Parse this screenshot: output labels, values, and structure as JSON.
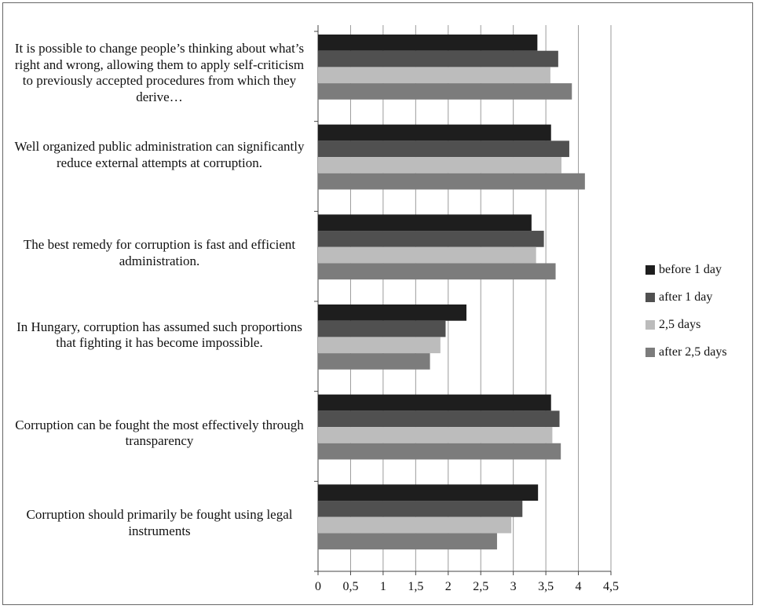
{
  "chart_data": {
    "type": "bar",
    "orientation": "horizontal",
    "categories": [
      "It is possible to change people’s thinking about what’s right and wrong, allowing them to apply self-criticism to previously accepted procedures from which they derive…",
      "Well organized public administration can significantly reduce external attempts at corruption.",
      "The best remedy for corruption is fast and efficient administration.",
      "In Hungary, corruption has assumed such proportions that fighting it has become impossible.",
      "Corruption can be fought the most effectively through transparency",
      "Corruption should primarily be fought using legal instruments"
    ],
    "series": [
      {
        "name": "before 1 day",
        "color": "#1e1e1e",
        "values": [
          3.37,
          3.58,
          3.28,
          2.28,
          3.58,
          3.38
        ]
      },
      {
        "name": "after 1 day",
        "color": "#505050",
        "values": [
          3.69,
          3.86,
          3.47,
          1.96,
          3.71,
          3.14
        ]
      },
      {
        "name": "2,5 days",
        "color": "#bcbcbc",
        "values": [
          3.57,
          3.74,
          3.35,
          1.88,
          3.6,
          2.97
        ]
      },
      {
        "name": "after 2,5 days",
        "color": "#7c7c7c",
        "values": [
          3.9,
          4.1,
          3.65,
          1.72,
          3.73,
          2.75
        ]
      }
    ],
    "xlim": [
      0,
      4.5
    ],
    "x_ticks": [
      "0",
      "0,5",
      "1",
      "1,5",
      "2",
      "2,5",
      "3",
      "3,5",
      "4",
      "4,5"
    ],
    "title": "",
    "xlabel": "",
    "ylabel": "",
    "grid": "vertical",
    "legend_position": "right"
  }
}
